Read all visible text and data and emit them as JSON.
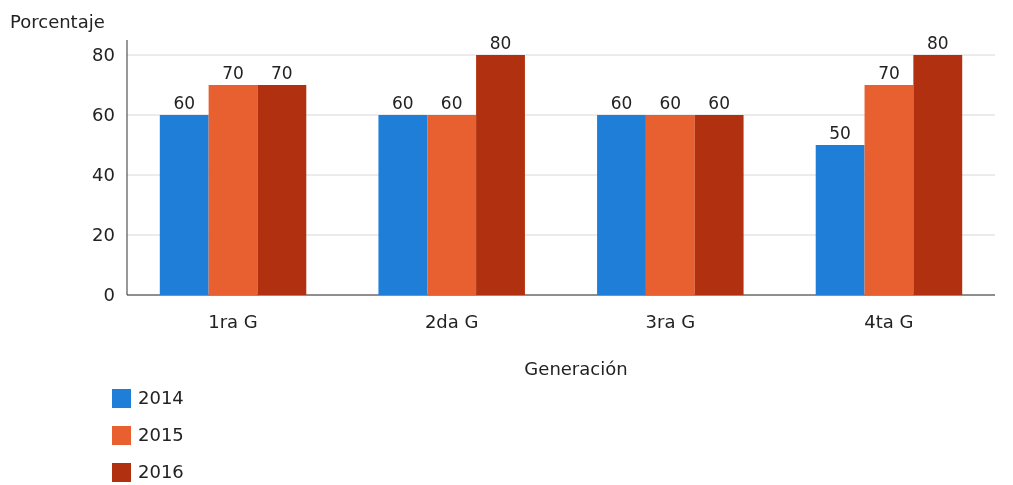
{
  "chart_data": {
    "type": "bar",
    "ylabel": "Porcentaje",
    "xlabel": "Generación",
    "categories": [
      "1ra G",
      "2da G",
      "3ra G",
      "4ta G"
    ],
    "series": [
      {
        "name": "2014",
        "color": "#1f7fd8",
        "values": [
          60,
          60,
          60,
          50
        ]
      },
      {
        "name": "2015",
        "color": "#e8602f",
        "values": [
          70,
          60,
          60,
          70
        ]
      },
      {
        "name": "2016",
        "color": "#b0300f",
        "values": [
          70,
          80,
          60,
          80
        ]
      }
    ],
    "ylim": [
      0,
      80
    ],
    "yticks": [
      0,
      20,
      40,
      60,
      80
    ],
    "grid": "y",
    "legend": "bottom left",
    "data_labels": true
  }
}
